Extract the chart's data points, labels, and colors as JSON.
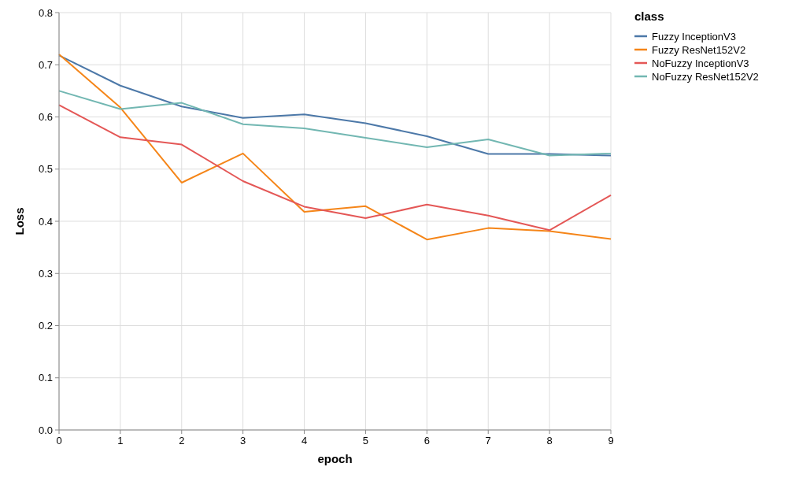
{
  "chart_data": {
    "type": "line",
    "xlabel": "epoch",
    "ylabel": "Loss",
    "legend_title": "class",
    "x": [
      0,
      1,
      2,
      3,
      4,
      5,
      6,
      7,
      8,
      9
    ],
    "xlim": [
      0,
      9
    ],
    "xticks": [
      0,
      1,
      2,
      3,
      4,
      5,
      6,
      7,
      8,
      9
    ],
    "ylim": [
      0,
      0.8
    ],
    "yticks": [
      {
        "value": 0,
        "label": "0.0"
      },
      0.1,
      0.2,
      0.3,
      0.4,
      0.5,
      0.6,
      0.7,
      0.8
    ],
    "grid": true,
    "legend": "top right",
    "marker": "none",
    "line_style": "solid",
    "series": [
      {
        "name": "Fuzzy InceptionV3",
        "color": "#4c78a8",
        "values": [
          0.718,
          0.66,
          0.62,
          0.598,
          0.605,
          0.588,
          0.563,
          0.529,
          0.529,
          0.526
        ]
      },
      {
        "name": "Fuzzy ResNet152V2",
        "color": "#f58518",
        "values": [
          0.72,
          0.618,
          0.474,
          0.53,
          0.418,
          0.429,
          0.365,
          0.387,
          0.381,
          0.366
        ]
      },
      {
        "name": "NoFuzzy InceptionV3",
        "color": "#e45756",
        "values": [
          0.623,
          0.561,
          0.547,
          0.477,
          0.428,
          0.406,
          0.432,
          0.411,
          0.383,
          0.45
        ]
      },
      {
        "name": "NoFuzzy ResNet152V2",
        "color": "#72b7b2",
        "values": [
          0.65,
          0.615,
          0.627,
          0.586,
          0.578,
          0.56,
          0.542,
          0.557,
          0.526,
          0.53
        ]
      }
    ]
  }
}
